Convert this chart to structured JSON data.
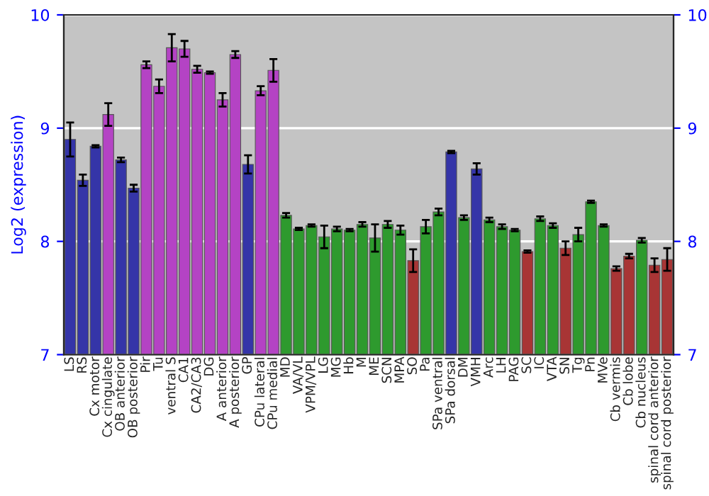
{
  "chart_data": {
    "type": "bar",
    "ylabel": "Log2 (expression)",
    "categories": [
      "LS",
      "RS",
      "Cx motor",
      "Cx cingulate",
      "OB anterior",
      "OB posterior",
      "Pir",
      "Tu",
      "ventral S",
      "CA1",
      "CA2/CA3",
      "DG",
      "A anterior",
      "A posterior",
      "GP",
      "CPu lateral",
      "CPu medial",
      "MD",
      "VA/VL",
      "VPM/VPL",
      "LG",
      "MG",
      "Hb",
      "M",
      "ME",
      "SCN",
      "MPA",
      "SO",
      "Pa",
      "SPa ventral",
      "SPa dorsal",
      "DM",
      "VMH",
      "Arc",
      "LH",
      "PAG",
      "SC",
      "IC",
      "VTA",
      "SN",
      "Tg",
      "Pn",
      "MVe",
      "Cb vermis",
      "Cb lobe",
      "Cb nucleus",
      "spinal cord anterior",
      "spinal cord posterior"
    ],
    "values": [
      8.9,
      8.54,
      8.84,
      9.12,
      8.72,
      8.47,
      9.56,
      9.37,
      9.71,
      9.7,
      9.52,
      9.49,
      9.25,
      9.65,
      8.68,
      9.33,
      9.51,
      8.23,
      8.11,
      8.14,
      8.04,
      8.11,
      8.1,
      8.15,
      8.03,
      8.15,
      8.1,
      7.83,
      8.13,
      8.26,
      8.79,
      8.21,
      8.64,
      8.19,
      8.13,
      8.1,
      7.91,
      8.2,
      8.14,
      7.94,
      8.06,
      8.35,
      8.14,
      7.76,
      7.87,
      8.01,
      7.79,
      7.84
    ],
    "errors": [
      0.15,
      0.05,
      0.01,
      0.1,
      0.02,
      0.03,
      0.03,
      0.06,
      0.12,
      0.07,
      0.03,
      0.01,
      0.06,
      0.03,
      0.08,
      0.04,
      0.1,
      0.02,
      0.01,
      0.01,
      0.1,
      0.02,
      0.01,
      0.02,
      0.12,
      0.03,
      0.04,
      0.1,
      0.06,
      0.03,
      0.01,
      0.02,
      0.05,
      0.02,
      0.02,
      0.01,
      0.01,
      0.02,
      0.02,
      0.06,
      0.06,
      0.01,
      0.01,
      0.02,
      0.02,
      0.02,
      0.06,
      0.1
    ],
    "colors": [
      "#3535a8",
      "#3535a8",
      "#3535a8",
      "#b443c4",
      "#3535a8",
      "#3535a8",
      "#b443c4",
      "#b443c4",
      "#b443c4",
      "#b443c4",
      "#b443c4",
      "#b443c4",
      "#b443c4",
      "#b443c4",
      "#3535a8",
      "#b443c4",
      "#b443c4",
      "#2e9a2e",
      "#2e9a2e",
      "#2e9a2e",
      "#2e9a2e",
      "#2e9a2e",
      "#2e9a2e",
      "#2e9a2e",
      "#2e9a2e",
      "#2e9a2e",
      "#2e9a2e",
      "#a83535",
      "#2e9a2e",
      "#2e9a2e",
      "#3535a8",
      "#2e9a2e",
      "#3535a8",
      "#2e9a2e",
      "#2e9a2e",
      "#2e9a2e",
      "#a83535",
      "#2e9a2e",
      "#2e9a2e",
      "#a83535",
      "#2e9a2e",
      "#2e9a2e",
      "#2e9a2e",
      "#a83535",
      "#a83535",
      "#2e9a2e",
      "#a83535",
      "#a83535"
    ],
    "ylim": [
      7,
      10
    ],
    "yticks": [
      7,
      8,
      9,
      10
    ],
    "y2lim": [
      7,
      10
    ],
    "y2ticks": [
      7,
      8,
      9,
      10
    ],
    "grid": "y"
  }
}
